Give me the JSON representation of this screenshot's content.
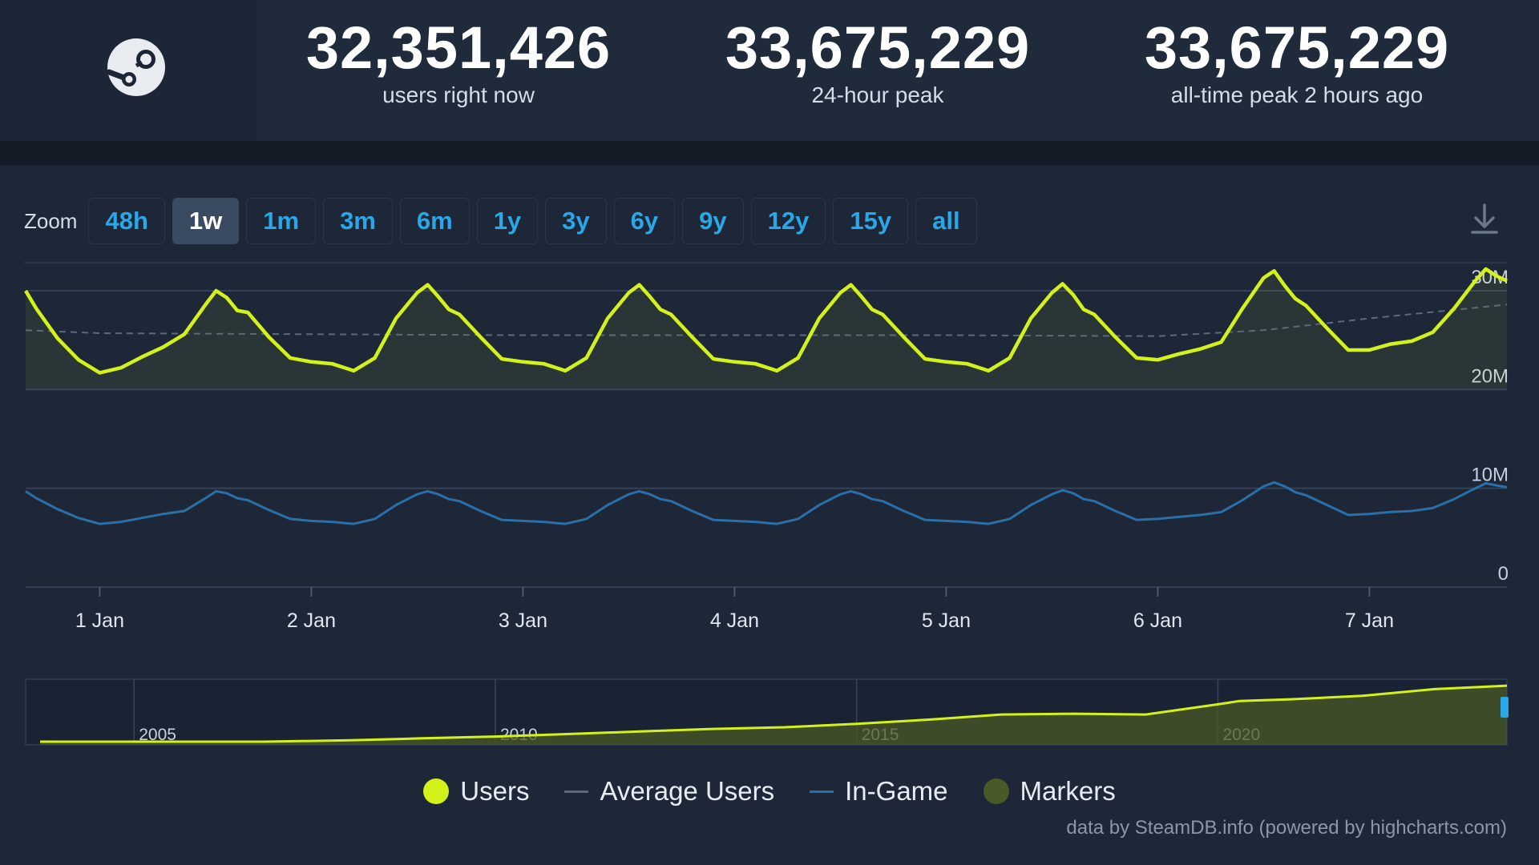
{
  "header": {
    "stats": [
      {
        "value": "32,351,426",
        "label": "users right now"
      },
      {
        "value": "33,675,229",
        "label": "24-hour peak"
      },
      {
        "value": "33,675,229",
        "label": "all-time peak 2 hours ago"
      }
    ]
  },
  "zoom": {
    "label": "Zoom",
    "buttons": [
      "48h",
      "1w",
      "1m",
      "3m",
      "6m",
      "1y",
      "3y",
      "6y",
      "9y",
      "12y",
      "15y",
      "all"
    ],
    "active": "1w"
  },
  "colors": {
    "users": "#d3f21a",
    "average": "#5d6a7a",
    "in_game": "#2a6fa8",
    "markers": "#4a5a26",
    "zoom_text": "#2aa7e6"
  },
  "icons": [
    "steam-logo-icon",
    "download-icon"
  ],
  "chart_data": {
    "type": "line",
    "x_unit": "days (1 Jan 00:00 = 1.0)",
    "xlim": [
      0.65,
      7.65
    ],
    "ylim": [
      0,
      33000000
    ],
    "y_ticks": [
      0,
      10000000,
      20000000,
      30000000
    ],
    "y_tick_labels": [
      "0",
      "10M",
      "20M",
      "30M"
    ],
    "x_ticks": [
      1,
      2,
      3,
      4,
      5,
      6,
      7
    ],
    "x_tick_labels": [
      "1 Jan",
      "2 Jan",
      "3 Jan",
      "4 Jan",
      "5 Jan",
      "6 Jan",
      "7 Jan"
    ],
    "grid": true,
    "series": [
      {
        "name": "Users",
        "x": [
          0.65,
          0.7,
          0.8,
          0.9,
          1.0,
          1.1,
          1.2,
          1.3,
          1.4,
          1.5,
          1.55,
          1.6,
          1.65,
          1.7,
          1.8,
          1.9,
          2.0,
          2.1,
          2.2,
          2.3,
          2.4,
          2.5,
          2.55,
          2.6,
          2.65,
          2.7,
          2.8,
          2.9,
          3.0,
          3.1,
          3.2,
          3.3,
          3.4,
          3.5,
          3.55,
          3.6,
          3.65,
          3.7,
          3.8,
          3.9,
          4.0,
          4.1,
          4.2,
          4.3,
          4.4,
          4.5,
          4.55,
          4.6,
          4.65,
          4.7,
          4.8,
          4.9,
          5.0,
          5.1,
          5.2,
          5.3,
          5.4,
          5.5,
          5.55,
          5.6,
          5.65,
          5.7,
          5.8,
          5.9,
          6.0,
          6.1,
          6.2,
          6.3,
          6.4,
          6.5,
          6.55,
          6.6,
          6.65,
          6.7,
          6.8,
          6.9,
          7.0,
          7.1,
          7.2,
          7.3,
          7.4,
          7.5,
          7.55,
          7.6,
          7.65
        ],
        "values": [
          30000000,
          28200000,
          25200000,
          23000000,
          21700000,
          22200000,
          23300000,
          24300000,
          25600000,
          28600000,
          30000000,
          29300000,
          28000000,
          27800000,
          25300000,
          23200000,
          22800000,
          22600000,
          21900000,
          23200000,
          27200000,
          29800000,
          30600000,
          29400000,
          28100000,
          27600000,
          25300000,
          23100000,
          22800000,
          22600000,
          21900000,
          23200000,
          27200000,
          29800000,
          30600000,
          29400000,
          28100000,
          27600000,
          25300000,
          23100000,
          22800000,
          22600000,
          21900000,
          23200000,
          27200000,
          29800000,
          30600000,
          29400000,
          28100000,
          27600000,
          25300000,
          23100000,
          22800000,
          22600000,
          21900000,
          23200000,
          27200000,
          29800000,
          30700000,
          29600000,
          28100000,
          27600000,
          25300000,
          23200000,
          23000000,
          23600000,
          24100000,
          24800000,
          28200000,
          31300000,
          32000000,
          30500000,
          29200000,
          28500000,
          26200000,
          24000000,
          24000000,
          24600000,
          24900000,
          25800000,
          28200000,
          31000000,
          32200000,
          31500000,
          31000000
        ]
      },
      {
        "name": "Average Users",
        "x": [
          0.65,
          1.0,
          2.0,
          3.0,
          4.0,
          5.0,
          6.0,
          6.5,
          7.0,
          7.65
        ],
        "values": [
          26000000,
          25700000,
          25600000,
          25500000,
          25500000,
          25500000,
          25400000,
          26000000,
          27200000,
          28600000
        ]
      },
      {
        "name": "In-Game",
        "x": [
          0.65,
          0.7,
          0.8,
          0.9,
          1.0,
          1.1,
          1.2,
          1.3,
          1.4,
          1.5,
          1.55,
          1.6,
          1.65,
          1.7,
          1.8,
          1.9,
          2.0,
          2.1,
          2.2,
          2.3,
          2.4,
          2.5,
          2.55,
          2.6,
          2.65,
          2.7,
          2.8,
          2.9,
          3.0,
          3.1,
          3.2,
          3.3,
          3.4,
          3.5,
          3.55,
          3.6,
          3.65,
          3.7,
          3.8,
          3.9,
          4.0,
          4.1,
          4.2,
          4.3,
          4.4,
          4.5,
          4.55,
          4.6,
          4.65,
          4.7,
          4.8,
          4.9,
          5.0,
          5.1,
          5.2,
          5.3,
          5.4,
          5.5,
          5.55,
          5.6,
          5.65,
          5.7,
          5.8,
          5.9,
          6.0,
          6.1,
          6.2,
          6.3,
          6.4,
          6.5,
          6.55,
          6.6,
          6.65,
          6.7,
          6.8,
          6.9,
          7.0,
          7.1,
          7.2,
          7.3,
          7.4,
          7.5,
          7.55,
          7.6,
          7.65
        ],
        "values": [
          9700000,
          9000000,
          7900000,
          7000000,
          6400000,
          6600000,
          7000000,
          7400000,
          7700000,
          9000000,
          9700000,
          9500000,
          9000000,
          8800000,
          7800000,
          6900000,
          6700000,
          6600000,
          6400000,
          6900000,
          8300000,
          9400000,
          9700000,
          9400000,
          8900000,
          8700000,
          7700000,
          6800000,
          6700000,
          6600000,
          6400000,
          6900000,
          8300000,
          9400000,
          9700000,
          9400000,
          8900000,
          8700000,
          7700000,
          6800000,
          6700000,
          6600000,
          6400000,
          6900000,
          8300000,
          9400000,
          9700000,
          9400000,
          8900000,
          8700000,
          7700000,
          6800000,
          6700000,
          6600000,
          6400000,
          6900000,
          8300000,
          9400000,
          9800000,
          9500000,
          8900000,
          8700000,
          7700000,
          6800000,
          6900000,
          7100000,
          7300000,
          7600000,
          8800000,
          10200000,
          10600000,
          10200000,
          9600000,
          9300000,
          8300000,
          7300000,
          7400000,
          7600000,
          7700000,
          8000000,
          8900000,
          10000000,
          10500000,
          10300000,
          10100000
        ]
      }
    ],
    "navigator": {
      "x_tick_labels": [
        "2005",
        "2010",
        "2015",
        "2020"
      ],
      "x": [
        2003.7,
        2004.5,
        2005.0,
        2005.6,
        2006.8,
        2008.0,
        2009.0,
        2010.0,
        2011.0,
        2012.0,
        2013.0,
        2014.0,
        2015.0,
        2016.0,
        2017.0,
        2018.0,
        2019.0,
        2020.0,
        2020.3,
        2021.0,
        2022.0,
        2023.0,
        2024.0
      ],
      "values": [
        0,
        0,
        0,
        0,
        0,
        800000,
        2000000,
        3000000,
        4500000,
        6000000,
        7500000,
        8500000,
        10500000,
        13000000,
        16000000,
        16500000,
        16000000,
        22000000,
        24000000,
        25000000,
        27000000,
        31000000,
        33000000
      ]
    }
  },
  "legend": {
    "items": [
      {
        "label": "Users",
        "kind": "dot"
      },
      {
        "label": "Average Users",
        "kind": "line"
      },
      {
        "label": "In-Game",
        "kind": "line"
      },
      {
        "label": "Markers",
        "kind": "dot"
      }
    ]
  },
  "credits": "data by SteamDB.info (powered by highcharts.com)"
}
